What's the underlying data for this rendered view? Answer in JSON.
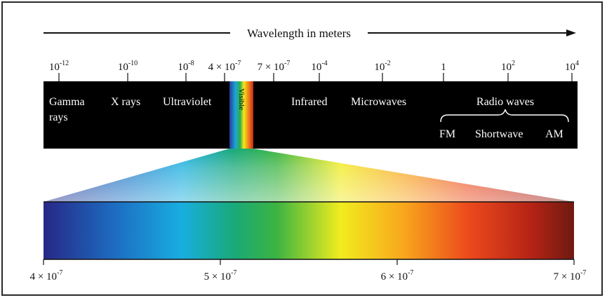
{
  "header": {
    "title": "Wavelength in meters"
  },
  "top_scale": {
    "ticks": [
      {
        "base": "10",
        "exp": "-12"
      },
      {
        "base": "10",
        "exp": "-10"
      },
      {
        "base": "10",
        "exp": "-8"
      },
      {
        "base": "4 × 10",
        "exp": "-7"
      },
      {
        "base": "7 × 10",
        "exp": "-7"
      },
      {
        "base": "10",
        "exp": "-4"
      },
      {
        "base": "10",
        "exp": "-2"
      },
      {
        "base": "1",
        "exp": ""
      },
      {
        "base": "10",
        "exp": "2"
      },
      {
        "base": "10",
        "exp": "4"
      }
    ]
  },
  "bands": {
    "gamma_line1": "Gamma",
    "gamma_line2": "rays",
    "xrays": "X rays",
    "ultraviolet": "Ultraviolet",
    "visible": "Visible",
    "infrared": "Infrared",
    "microwaves": "Microwaves",
    "radio": "Radio waves",
    "fm": "FM",
    "shortwave": "Shortwave",
    "am": "AM"
  },
  "bottom_scale": {
    "ticks": [
      {
        "base": "4 × 10",
        "exp": "-7"
      },
      {
        "base": "5 × 10",
        "exp": "-7"
      },
      {
        "base": "6 × 10",
        "exp": "-7"
      },
      {
        "base": "7 × 10",
        "exp": "-7"
      }
    ]
  },
  "colors": {
    "band_background": "#000000",
    "spectrum_stops": [
      "#2a2a8c",
      "#1aa6d8",
      "#22b34a",
      "#f2ea1c",
      "#f7a21a",
      "#e8341c",
      "#7a1a12"
    ]
  }
}
